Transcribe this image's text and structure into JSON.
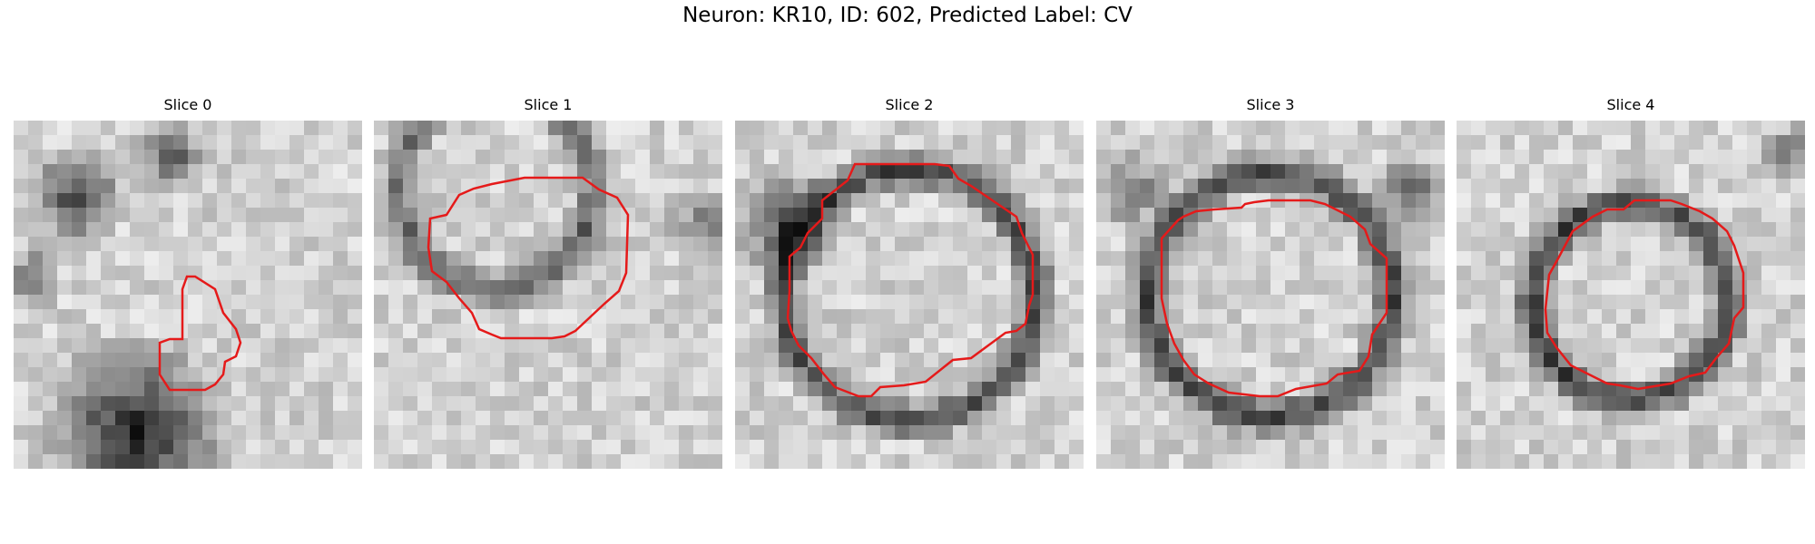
{
  "figure": {
    "title": "Neuron: KR10, ID: 602, Predicted Label: CV",
    "outline_color": "#e51a1a",
    "panels": [
      {
        "title": "Slice 0"
      },
      {
        "title": "Slice 1"
      },
      {
        "title": "Slice 2"
      },
      {
        "title": "Slice 3"
      },
      {
        "title": "Slice 4"
      }
    ]
  }
}
